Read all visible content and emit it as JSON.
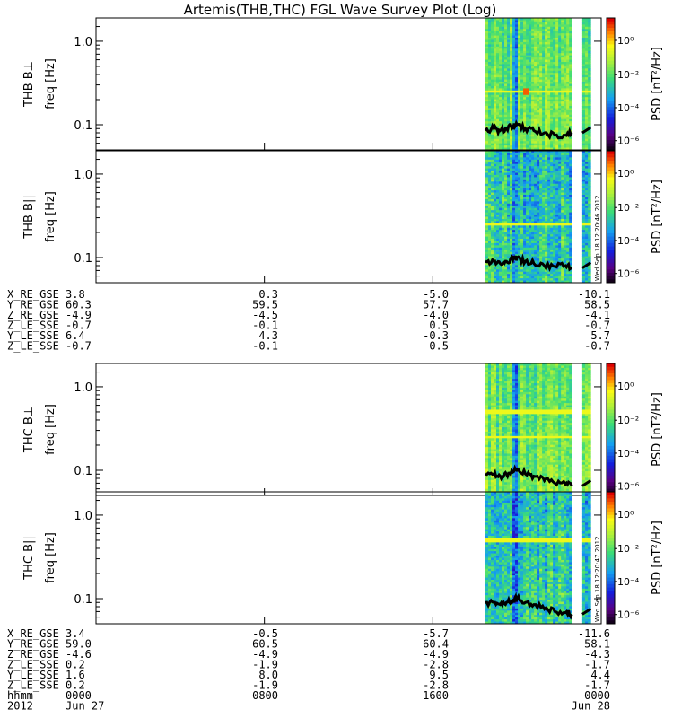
{
  "title": "Artemis(THB,THC) FGL Wave Survey Plot (Log)",
  "colors": {
    "frame": "#000000",
    "curve": "#000000",
    "spec_base": "#66d87a"
  },
  "colorbar": {
    "label": "PSD [nT²/Hz]",
    "ticks": [
      "10⁰",
      "10⁻²",
      "10⁻⁴",
      "10⁻⁶"
    ]
  },
  "yaxis_ticks": [
    "1.0",
    "0.1"
  ],
  "stamps": {
    "thb": "Wed Sep 18 12:20:46 2012",
    "thc": "Wed Sep 18 12:20:47 2012"
  },
  "chart_data": [
    {
      "type": "heatmap",
      "name": "THB B⊥",
      "ylabel": "THB B⊥\nfreq [Hz]",
      "ylim": [
        0.05,
        1.9
      ],
      "yscale": "log",
      "x_range_hours": [
        0,
        24
      ],
      "data_intervals_hours": [
        [
          18.5,
          22.6
        ],
        [
          23.1,
          23.5
        ]
      ],
      "color_scale": "log",
      "zrange": [
        1e-06,
        10
      ],
      "spectral_lines_hz": [
        0.25
      ],
      "highlight": {
        "time_hours": 20.4,
        "freq_hz": 0.25,
        "note": "peak"
      },
      "curve_freq_hz": [
        0.085,
        0.09,
        0.085,
        0.09,
        0.095,
        0.1,
        0.09,
        0.085,
        0.08,
        0.075,
        0.075,
        0.08
      ],
      "curve_time_hours": [
        18.5,
        18.9,
        19.2,
        19.5,
        19.8,
        20.0,
        20.4,
        20.8,
        21.3,
        21.8,
        22.3,
        22.6
      ]
    },
    {
      "type": "heatmap",
      "name": "THB B||",
      "ylabel": "THB B||\nfreq [Hz]",
      "ylim": [
        0.05,
        1.9
      ],
      "yscale": "log",
      "x_range_hours": [
        0,
        24
      ],
      "data_intervals_hours": [
        [
          18.5,
          22.6
        ],
        [
          23.1,
          23.5
        ]
      ],
      "color_scale": "log",
      "zrange": [
        1e-06,
        10
      ],
      "spectral_lines_hz": [
        0.25
      ],
      "curve_freq_hz": [
        0.09,
        0.09,
        0.085,
        0.09,
        0.095,
        0.1,
        0.09,
        0.085,
        0.08,
        0.078,
        0.08,
        0.075
      ],
      "curve_time_hours": [
        18.5,
        18.9,
        19.2,
        19.5,
        19.8,
        20.0,
        20.4,
        20.8,
        21.3,
        21.8,
        22.3,
        22.6
      ]
    },
    {
      "type": "heatmap",
      "name": "THC B⊥",
      "ylabel": "THC B⊥\nfreq [Hz]",
      "ylim": [
        0.05,
        1.9
      ],
      "yscale": "log",
      "x_range_hours": [
        0,
        24
      ],
      "data_intervals_hours": [
        [
          18.5,
          22.6
        ],
        [
          23.1,
          23.5
        ]
      ],
      "color_scale": "log",
      "zrange": [
        1e-06,
        10
      ],
      "spectral_lines_hz": [
        0.5,
        0.25
      ],
      "curve_freq_hz": [
        0.09,
        0.09,
        0.085,
        0.09,
        0.095,
        0.1,
        0.09,
        0.085,
        0.075,
        0.07,
        0.068,
        0.065
      ],
      "curve_time_hours": [
        18.5,
        18.9,
        19.2,
        19.5,
        19.8,
        20.0,
        20.4,
        20.8,
        21.3,
        21.8,
        22.3,
        22.6
      ]
    },
    {
      "type": "heatmap",
      "name": "THC B||",
      "ylabel": "THC B||\nfreq [Hz]",
      "ylim": [
        0.05,
        1.9
      ],
      "yscale": "log",
      "x_range_hours": [
        0,
        24
      ],
      "data_intervals_hours": [
        [
          18.5,
          22.6
        ],
        [
          23.1,
          23.5
        ]
      ],
      "color_scale": "log",
      "zrange": [
        1e-06,
        10
      ],
      "spectral_lines_hz": [
        0.5
      ],
      "curve_freq_hz": [
        0.09,
        0.09,
        0.085,
        0.09,
        0.095,
        0.1,
        0.09,
        0.085,
        0.075,
        0.07,
        0.068,
        0.065
      ],
      "curve_time_hours": [
        18.5,
        18.9,
        19.2,
        19.5,
        19.8,
        20.0,
        20.4,
        20.8,
        21.3,
        21.8,
        22.3,
        22.6
      ]
    }
  ],
  "ephemeris": {
    "thb": {
      "labels": [
        "X_RE_GSE",
        "Y_RE_GSE",
        "Z_RE_GSE",
        "Z_LE_SSE",
        "Y_LE_SSE",
        "Z_LE_SSE"
      ],
      "col0": [
        "3.8",
        "60.3",
        "-4.9",
        "-0.7",
        "6.4",
        "-0.7"
      ],
      "col1": [
        "0.3",
        "59.5",
        "-4.5",
        "-0.1",
        "4.3",
        "-0.1"
      ],
      "col2": [
        "-5.0",
        "57.7",
        "-4.0",
        "0.5",
        "-0.3",
        "0.5"
      ],
      "col3": [
        "-10.1",
        "58.5",
        "-4.1",
        "-0.7",
        "5.7",
        "-0.7"
      ]
    },
    "thc": {
      "labels": [
        "X_RE_GSE",
        "Y_RE_GSE",
        "Z_RE_GSE",
        "Z_LE_SSE",
        "Y_LE_SSE",
        "Z_LE_SSE",
        "hhmm",
        "2012"
      ],
      "col0": [
        "3.4",
        "59.0",
        "-4.6",
        "0.2",
        "1.6",
        "0.2",
        "0000",
        "Jun 27"
      ],
      "col1": [
        "-0.5",
        "60.5",
        "-4.9",
        "-1.9",
        "8.0",
        "-1.9",
        "0800",
        ""
      ],
      "col2": [
        "-5.7",
        "60.4",
        "-4.9",
        "-2.8",
        "9.5",
        "-2.8",
        "1600",
        ""
      ],
      "col3": [
        "-11.6",
        "58.1",
        "-4.3",
        "-1.7",
        "4.4",
        "-1.7",
        "0000",
        "Jun 28"
      ]
    }
  }
}
